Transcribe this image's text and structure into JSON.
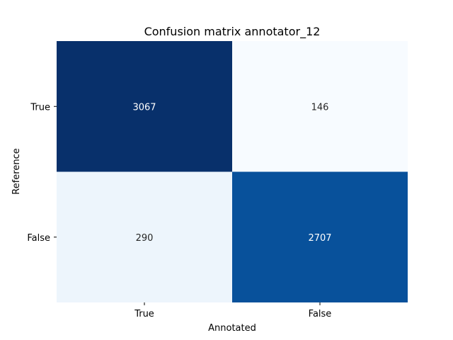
{
  "chart_data": {
    "type": "heatmap",
    "title": "Confusion matrix annotator_12",
    "xlabel": "Annotated",
    "ylabel": "Reference",
    "x_categories": [
      "True",
      "False"
    ],
    "y_categories": [
      "True",
      "False"
    ],
    "values": [
      [
        3067,
        146
      ],
      [
        290,
        2707
      ]
    ],
    "colormap": "Blues",
    "colorbar": false,
    "grid": false
  },
  "colors": {
    "low": "#f7fbff",
    "high": "#08306b",
    "text_dark": "#262626",
    "text_light": "#ffffff"
  }
}
